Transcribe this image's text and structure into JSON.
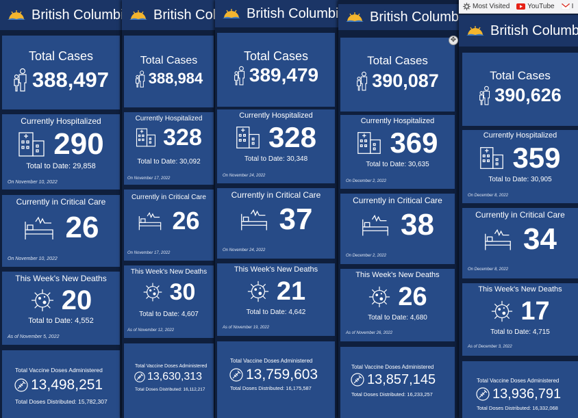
{
  "header_title": "British Columbia",
  "labels": {
    "total_cases": "Total Cases",
    "hospitalized": "Currently Hospitalized",
    "total_to_date_prefix": "Total to Date: ",
    "critical": "Currently in Critical Care",
    "deaths": "This Week's New Deaths",
    "vaccine": "Total Vaccine Doses Administered",
    "distributed_prefix": "Total Doses Distributed: "
  },
  "browser_bookmarks": [
    {
      "icon": "gear-icon",
      "label": "Most Visited"
    },
    {
      "icon": "youtube-icon",
      "label": "YouTube"
    },
    {
      "icon": "gmail-icon",
      "label": "I"
    }
  ],
  "snapshots": [
    {
      "total_cases": "388,497",
      "hospitalized": "290",
      "hosp_total": "29,858",
      "hosp_date": "On November 10, 2022",
      "critical": "26",
      "critical_date": "On November 10, 2022",
      "deaths": "20",
      "deaths_total": "4,552",
      "deaths_date": "As of November 5, 2022",
      "vaccine_doses": "13,498,251",
      "distributed": "15,782,307"
    },
    {
      "total_cases": "388,984",
      "hospitalized": "328",
      "hosp_total": "30,092",
      "hosp_date": "On November 17, 2022",
      "critical": "26",
      "critical_date": "On November 17, 2022",
      "deaths": "30",
      "deaths_total": "4,607",
      "deaths_date": "As of November 12, 2022",
      "vaccine_doses": "13,630,313",
      "distributed": "16,112,217"
    },
    {
      "total_cases": "389,479",
      "hospitalized": "328",
      "hosp_total": "30,348",
      "hosp_date": "On November 24, 2022",
      "critical": "37",
      "critical_date": "On November 24, 2022",
      "deaths": "21",
      "deaths_total": "4,642",
      "deaths_date": "As of November 19, 2022",
      "vaccine_doses": "13,759,603",
      "distributed": "16,175,587"
    },
    {
      "total_cases": "390,087",
      "hospitalized": "369",
      "hosp_total": "30,635",
      "hosp_date": "On December 2, 2022",
      "critical": "38",
      "critical_date": "On December 2, 2022",
      "deaths": "26",
      "deaths_total": "4,680",
      "deaths_date": "As of November 26, 2022",
      "vaccine_doses": "13,857,145",
      "distributed": "16,233,257"
    },
    {
      "total_cases": "390,626",
      "hospitalized": "359",
      "hosp_total": "30,905",
      "hosp_date": "On December 8, 2022",
      "critical": "34",
      "critical_date": "On December 8, 2022",
      "deaths": "17",
      "deaths_total": "4,715",
      "deaths_date": "As of December 3, 2022",
      "vaccine_doses": "13,936,791",
      "distributed": "16,332,068"
    }
  ]
}
